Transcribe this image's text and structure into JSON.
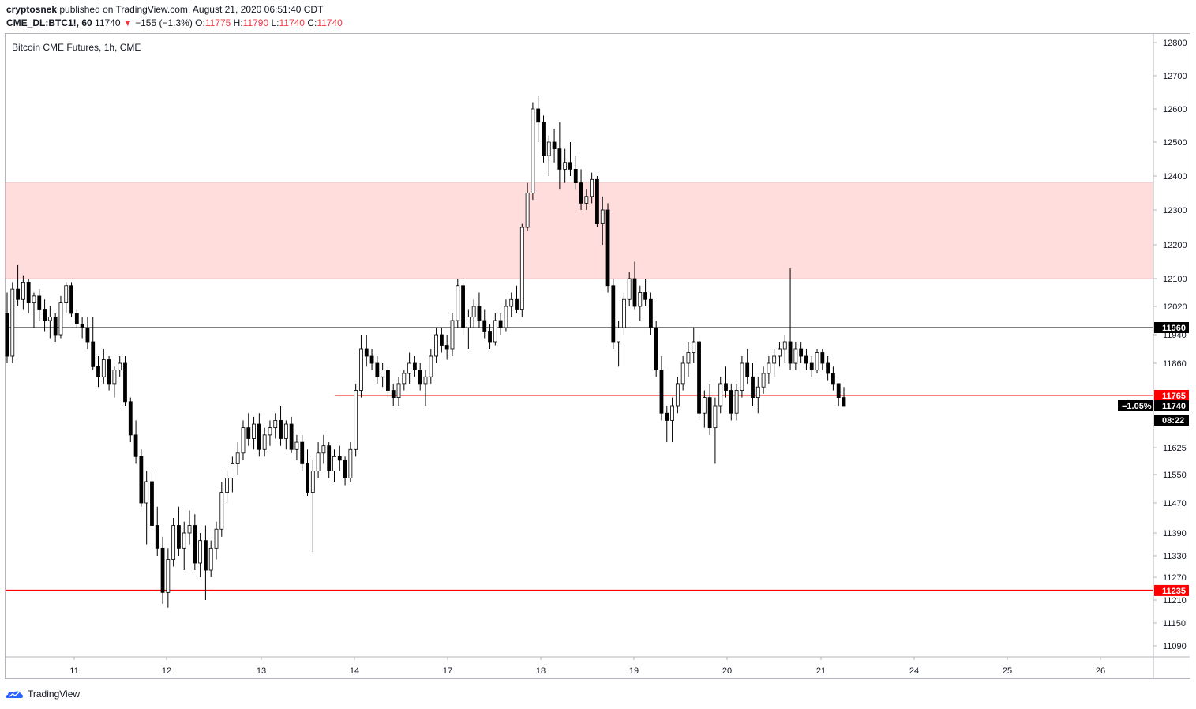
{
  "header": {
    "publisher": "cryptosnek",
    "published_text": "published on TradingView.com, August 21, 2020 06:51:40 CDT",
    "symbol": "CME_DL:BTC1!, 60",
    "last_price": "11740",
    "change_arrow": "▼",
    "change": "−155 (−1.3%)",
    "o_label": "O:",
    "o_value": "11775",
    "h_label": "H:",
    "h_value": "11790",
    "l_label": "L:",
    "l_value": "11740",
    "c_label": "C:",
    "c_value": "11740"
  },
  "footer": {
    "brand": "TradingView",
    "logo_icon": "tradingview-logo-icon"
  },
  "chart_data": {
    "type": "candlestick",
    "title": "Bitcoin CME Futures, 1h, CME",
    "x_tick_labels": [
      "11",
      "12",
      "13",
      "14",
      "17",
      "18",
      "19",
      "20",
      "21",
      "24",
      "25",
      "26"
    ],
    "y_tick_labels": [
      12800,
      12700,
      12600,
      12500,
      12400,
      12300,
      12200,
      12100,
      12020,
      11940,
      11860,
      11625,
      11550,
      11470,
      11390,
      11330,
      11270,
      11210,
      11150,
      11090
    ],
    "ylim": [
      11050,
      12850
    ],
    "resistance_zone": [
      12100,
      12380
    ],
    "horizontal_lines": [
      {
        "value": 11960,
        "label": "11960",
        "color": "#000000"
      },
      {
        "value": 11235,
        "label": "11235",
        "color": "#ff0000"
      }
    ],
    "prev_close_line": {
      "value": 11765,
      "label": "11765",
      "color": "#ff0000"
    },
    "last_price": {
      "value": 11740,
      "label": "11740",
      "change_label": "−1.05%",
      "countdown": "08:22"
    },
    "colors": {
      "zone": "#ffdddd",
      "line_black": "#000000",
      "line_red": "#ff0000"
    },
    "candles": [
      [
        12000,
        12060,
        11860,
        11880
      ],
      [
        11880,
        12090,
        11860,
        12070
      ],
      [
        12070,
        12140,
        12020,
        12040
      ],
      [
        12040,
        12110,
        12010,
        12090
      ],
      [
        12090,
        12100,
        12000,
        12030
      ],
      [
        12030,
        12060,
        11960,
        12050
      ],
      [
        12050,
        12070,
        11980,
        12010
      ],
      [
        12010,
        12040,
        11950,
        11980
      ],
      [
        11980,
        12020,
        11930,
        11990
      ],
      [
        11990,
        12000,
        11920,
        11940
      ],
      [
        11940,
        12050,
        11930,
        12030
      ],
      [
        12030,
        12090,
        12000,
        12080
      ],
      [
        12080,
        12090,
        11990,
        12000
      ],
      [
        12000,
        12010,
        11960,
        11970
      ],
      [
        11970,
        11990,
        11930,
        11960
      ],
      [
        11960,
        11990,
        11900,
        11920
      ],
      [
        11920,
        11990,
        11840,
        11850
      ],
      [
        11850,
        11880,
        11790,
        11820
      ],
      [
        11820,
        11900,
        11800,
        11870
      ],
      [
        11870,
        11880,
        11780,
        11800
      ],
      [
        11800,
        11850,
        11760,
        11840
      ],
      [
        11840,
        11880,
        11820,
        11860
      ],
      [
        11860,
        11880,
        11740,
        11750
      ],
      [
        11750,
        11760,
        11640,
        11660
      ],
      [
        11660,
        11700,
        11580,
        11600
      ],
      [
        11600,
        11620,
        11460,
        11470
      ],
      [
        11470,
        11560,
        11360,
        11530
      ],
      [
        11530,
        11560,
        11400,
        11410
      ],
      [
        11410,
        11460,
        11330,
        11350
      ],
      [
        11350,
        11380,
        11200,
        11230
      ],
      [
        11230,
        11350,
        11190,
        11320
      ],
      [
        11320,
        11430,
        11300,
        11410
      ],
      [
        11410,
        11460,
        11330,
        11350
      ],
      [
        11350,
        11420,
        11290,
        11390
      ],
      [
        11390,
        11450,
        11360,
        11410
      ],
      [
        11410,
        11440,
        11290,
        11310
      ],
      [
        11310,
        11390,
        11270,
        11370
      ],
      [
        11370,
        11410,
        11210,
        11290
      ],
      [
        11290,
        11370,
        11270,
        11350
      ],
      [
        11350,
        11420,
        11320,
        11400
      ],
      [
        11400,
        11530,
        11380,
        11500
      ],
      [
        11500,
        11560,
        11470,
        11540
      ],
      [
        11540,
        11600,
        11500,
        11580
      ],
      [
        11580,
        11640,
        11550,
        11610
      ],
      [
        11610,
        11700,
        11590,
        11680
      ],
      [
        11680,
        11720,
        11630,
        11650
      ],
      [
        11650,
        11710,
        11620,
        11690
      ],
      [
        11690,
        11720,
        11600,
        11620
      ],
      [
        11620,
        11680,
        11600,
        11660
      ],
      [
        11660,
        11700,
        11630,
        11680
      ],
      [
        11680,
        11720,
        11650,
        11700
      ],
      [
        11700,
        11740,
        11630,
        11650
      ],
      [
        11650,
        11700,
        11620,
        11690
      ],
      [
        11690,
        11710,
        11610,
        11620
      ],
      [
        11620,
        11660,
        11590,
        11640
      ],
      [
        11640,
        11660,
        11560,
        11580
      ],
      [
        11580,
        11620,
        11490,
        11500
      ],
      [
        11500,
        11590,
        11340,
        11560
      ],
      [
        11560,
        11640,
        11540,
        11610
      ],
      [
        11610,
        11660,
        11580,
        11630
      ],
      [
        11630,
        11640,
        11540,
        11560
      ],
      [
        11560,
        11620,
        11530,
        11600
      ],
      [
        11600,
        11630,
        11560,
        11590
      ],
      [
        11590,
        11600,
        11520,
        11540
      ],
      [
        11540,
        11640,
        11530,
        11620
      ],
      [
        11620,
        11800,
        11600,
        11780
      ],
      [
        11780,
        11940,
        11760,
        11900
      ],
      [
        11900,
        11940,
        11850,
        11880
      ],
      [
        11880,
        11900,
        11840,
        11860
      ],
      [
        11860,
        11880,
        11800,
        11820
      ],
      [
        11820,
        11860,
        11790,
        11840
      ],
      [
        11840,
        11850,
        11760,
        11780
      ],
      [
        11780,
        11800,
        11740,
        11760
      ],
      [
        11760,
        11820,
        11740,
        11800
      ],
      [
        11800,
        11840,
        11780,
        11830
      ],
      [
        11830,
        11890,
        11800,
        11860
      ],
      [
        11860,
        11880,
        11820,
        11840
      ],
      [
        11840,
        11860,
        11780,
        11800
      ],
      [
        11800,
        11840,
        11740,
        11820
      ],
      [
        11820,
        11900,
        11800,
        11880
      ],
      [
        11880,
        11960,
        11860,
        11940
      ],
      [
        11940,
        11960,
        11890,
        11910
      ],
      [
        11910,
        11940,
        11870,
        11900
      ],
      [
        11900,
        12000,
        11880,
        11980
      ],
      [
        11980,
        12100,
        11960,
        12080
      ],
      [
        12080,
        12090,
        11940,
        11960
      ],
      [
        11960,
        12010,
        11900,
        11990
      ],
      [
        11990,
        12040,
        11960,
        12020
      ],
      [
        12020,
        12060,
        11960,
        11980
      ],
      [
        11980,
        12010,
        11930,
        11950
      ],
      [
        11950,
        11970,
        11900,
        11920
      ],
      [
        11920,
        12000,
        11910,
        11980
      ],
      [
        11980,
        12000,
        11940,
        11960
      ],
      [
        11960,
        12040,
        11950,
        12020
      ],
      [
        12020,
        12060,
        11990,
        12040
      ],
      [
        12040,
        12080,
        12000,
        12010
      ],
      [
        12010,
        12260,
        11990,
        12250
      ],
      [
        12250,
        12380,
        12240,
        12350
      ],
      [
        12350,
        12620,
        12330,
        12600
      ],
      [
        12600,
        12640,
        12500,
        12560
      ],
      [
        12560,
        12580,
        12440,
        12460
      ],
      [
        12460,
        12520,
        12400,
        12500
      ],
      [
        12500,
        12540,
        12440,
        12480
      ],
      [
        12480,
        12560,
        12360,
        12420
      ],
      [
        12420,
        12480,
        12380,
        12440
      ],
      [
        12440,
        12500,
        12400,
        12420
      ],
      [
        12420,
        12460,
        12360,
        12380
      ],
      [
        12380,
        12420,
        12300,
        12320
      ],
      [
        12320,
        12360,
        12300,
        12340
      ],
      [
        12340,
        12410,
        12320,
        12390
      ],
      [
        12390,
        12400,
        12250,
        12260
      ],
      [
        12260,
        12340,
        12200,
        12300
      ],
      [
        12300,
        12320,
        12060,
        12080
      ],
      [
        12080,
        12100,
        11900,
        11920
      ],
      [
        11920,
        11980,
        11850,
        11960
      ],
      [
        11960,
        12060,
        11940,
        12040
      ],
      [
        12040,
        12120,
        12020,
        12100
      ],
      [
        12100,
        12150,
        12010,
        12020
      ],
      [
        12020,
        12080,
        11980,
        12060
      ],
      [
        12060,
        12100,
        12020,
        12040
      ],
      [
        12040,
        12060,
        11940,
        11960
      ],
      [
        11960,
        11980,
        11820,
        11840
      ],
      [
        11840,
        11880,
        11700,
        11720
      ],
      [
        11720,
        11740,
        11640,
        11700
      ],
      [
        11700,
        11760,
        11640,
        11740
      ],
      [
        11740,
        11820,
        11720,
        11800
      ],
      [
        11800,
        11880,
        11780,
        11860
      ],
      [
        11860,
        11920,
        11820,
        11890
      ],
      [
        11890,
        11960,
        11860,
        11920
      ],
      [
        11920,
        11940,
        11700,
        11720
      ],
      [
        11720,
        11780,
        11680,
        11760
      ],
      [
        11760,
        11800,
        11660,
        11680
      ],
      [
        11680,
        11760,
        11580,
        11740
      ],
      [
        11740,
        11820,
        11720,
        11800
      ],
      [
        11800,
        11850,
        11760,
        11780
      ],
      [
        11780,
        11800,
        11700,
        11720
      ],
      [
        11720,
        11800,
        11700,
        11780
      ],
      [
        11780,
        11880,
        11760,
        11860
      ],
      [
        11860,
        11900,
        11800,
        11820
      ],
      [
        11820,
        11860,
        11740,
        11760
      ],
      [
        11760,
        11820,
        11720,
        11790
      ],
      [
        11790,
        11850,
        11770,
        11830
      ],
      [
        11830,
        11880,
        11800,
        11860
      ],
      [
        11860,
        11900,
        11820,
        11880
      ],
      [
        11880,
        11920,
        11850,
        11900
      ],
      [
        11900,
        11940,
        11860,
        11920
      ],
      [
        11920,
        12130,
        11840,
        11860
      ],
      [
        11860,
        11920,
        11840,
        11900
      ],
      [
        11900,
        11920,
        11860,
        11880
      ],
      [
        11880,
        11900,
        11840,
        11860
      ],
      [
        11860,
        11880,
        11820,
        11840
      ],
      [
        11840,
        11900,
        11830,
        11890
      ],
      [
        11890,
        11900,
        11840,
        11860
      ],
      [
        11860,
        11880,
        11810,
        11830
      ],
      [
        11830,
        11850,
        11780,
        11800
      ],
      [
        11800,
        11800,
        11740,
        11760
      ],
      [
        11760,
        11790,
        11740,
        11740
      ]
    ]
  }
}
